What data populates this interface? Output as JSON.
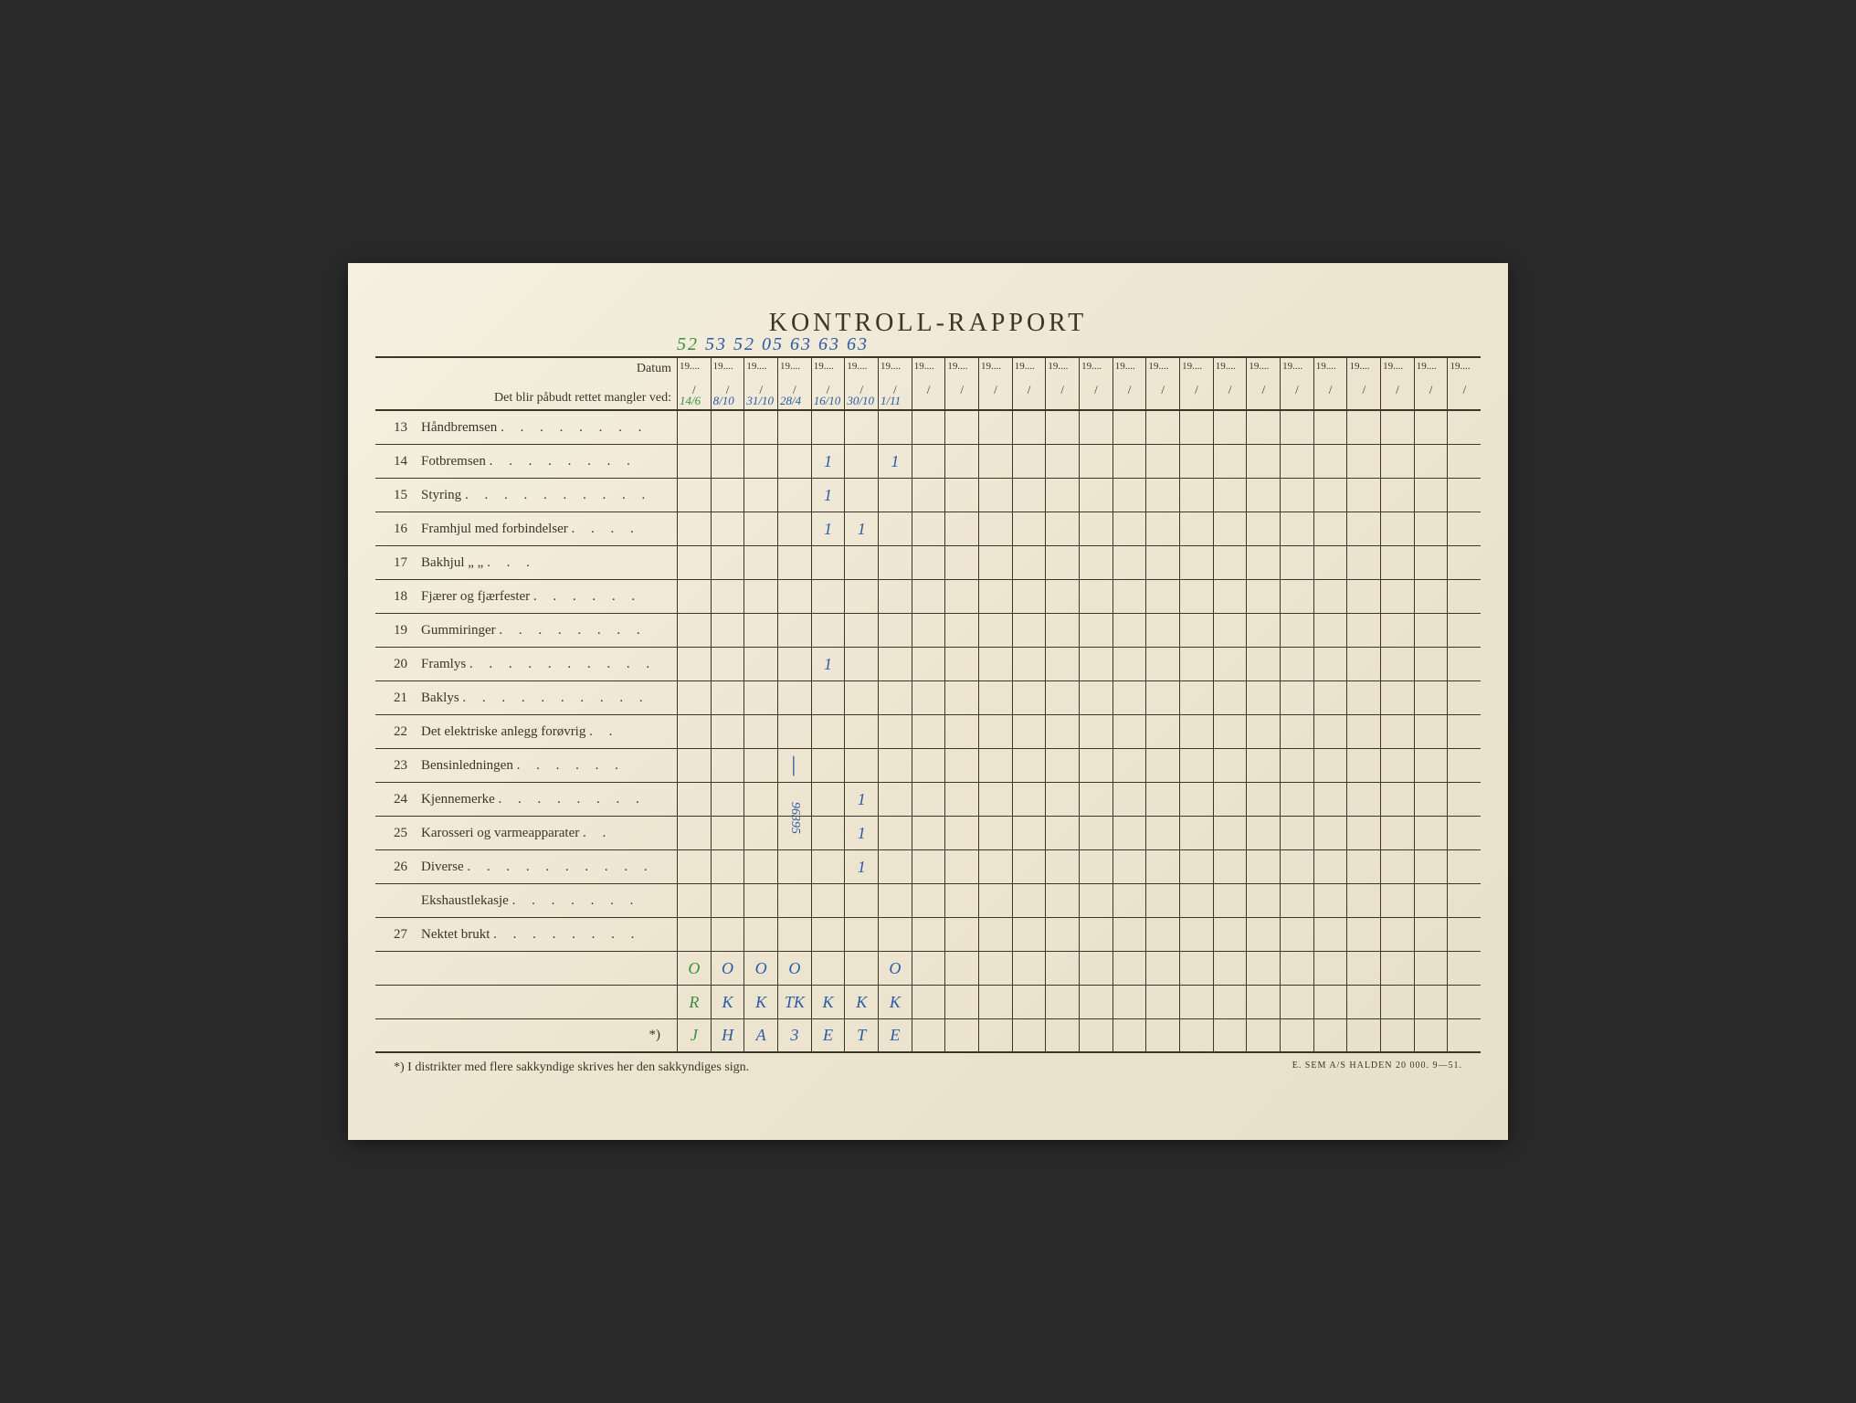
{
  "title": "KONTROLL-RAPPORT",
  "header": {
    "datum_label": "Datum",
    "subtitle": "Det blir påbudt rettet mangler ved:",
    "year_prefix": "19",
    "handwritten_years": "52 53 52 05 63 63 63",
    "date_entries": [
      "14/6",
      "8/10",
      "31/10",
      "28/4",
      "16/10",
      "30/10",
      "1/11"
    ]
  },
  "rows": [
    {
      "num": "13",
      "label": "Håndbremsen",
      "dots": ". . . . . . . .",
      "marks": {}
    },
    {
      "num": "14",
      "label": "Fotbremsen",
      "dots": ". . . . . . . .",
      "marks": {
        "4": "1",
        "6": "1"
      }
    },
    {
      "num": "15",
      "label": "Styring",
      "dots": ". . . . . . . . . .",
      "marks": {
        "4": "1"
      }
    },
    {
      "num": "16",
      "label": "Framhjul med forbindelser",
      "dots": ". . . .",
      "marks": {
        "4": "1",
        "5": "1"
      }
    },
    {
      "num": "17",
      "label": "Bakhjul        „            „",
      "dots": ". . .",
      "marks": {}
    },
    {
      "num": "18",
      "label": "Fjærer og fjærfester",
      "dots": ". . . . . .",
      "marks": {}
    },
    {
      "num": "19",
      "label": "Gummiringer",
      "dots": ". . . . . . . .",
      "marks": {}
    },
    {
      "num": "20",
      "label": "Framlys",
      "dots": ". . . . . . . . . .",
      "marks": {
        "4": "1"
      }
    },
    {
      "num": "21",
      "label": "Baklys",
      "dots": ". . . . . . . . . .",
      "marks": {}
    },
    {
      "num": "22",
      "label": "Det elektriske anlegg forøvrig",
      "dots": ". .",
      "marks": {}
    },
    {
      "num": "23",
      "label": "Bensinledningen",
      "dots": ". . . . . .",
      "marks": {
        "3": "│"
      }
    },
    {
      "num": "24",
      "label": "Kjennemerke",
      "dots": ". . . . . . . .",
      "marks": {
        "5": "1"
      }
    },
    {
      "num": "25",
      "label": "Karosseri og varmeapparater",
      "dots": ". .",
      "marks": {
        "5": "1"
      }
    },
    {
      "num": "26",
      "label": "Diverse",
      "dots": ". . . . . . . . . .",
      "marks": {
        "5": "1"
      }
    },
    {
      "num": "",
      "label": "Ekshaustlekasje",
      "dots": ". . . . . . .",
      "marks": {}
    },
    {
      "num": "27",
      "label": "Nektet brukt",
      "dots": ". . . . . . . .",
      "marks": {}
    }
  ],
  "signature_rows": [
    {
      "marks": {
        "0": "O",
        "1": "O",
        "2": "O",
        "3": "O",
        "6": "O"
      },
      "green_cols": [
        0
      ]
    },
    {
      "marks": {
        "0": "R",
        "1": "K",
        "2": "K",
        "3": "TK",
        "4": "K",
        "5": "K",
        "6": "K"
      },
      "green_cols": [
        0
      ]
    },
    {
      "label": "*)",
      "marks": {
        "0": "J",
        "1": "H",
        "2": "A",
        "3": "3",
        "4": "E",
        "5": "T",
        "6": "E"
      },
      "green_cols": [
        0
      ]
    }
  ],
  "vertical_note": "96395",
  "footer": {
    "note": "*)  I distrikter med flere sakkyndige skrives her den sakkyndiges sign.",
    "imprint": "E. SEM A/S HALDEN   20 000.   9—51."
  },
  "num_year_cols": 24,
  "colors": {
    "paper": "#ede5d0",
    "ink": "#3a3628",
    "pen_blue": "#2a5ba8",
    "pen_green": "#3a9040"
  }
}
